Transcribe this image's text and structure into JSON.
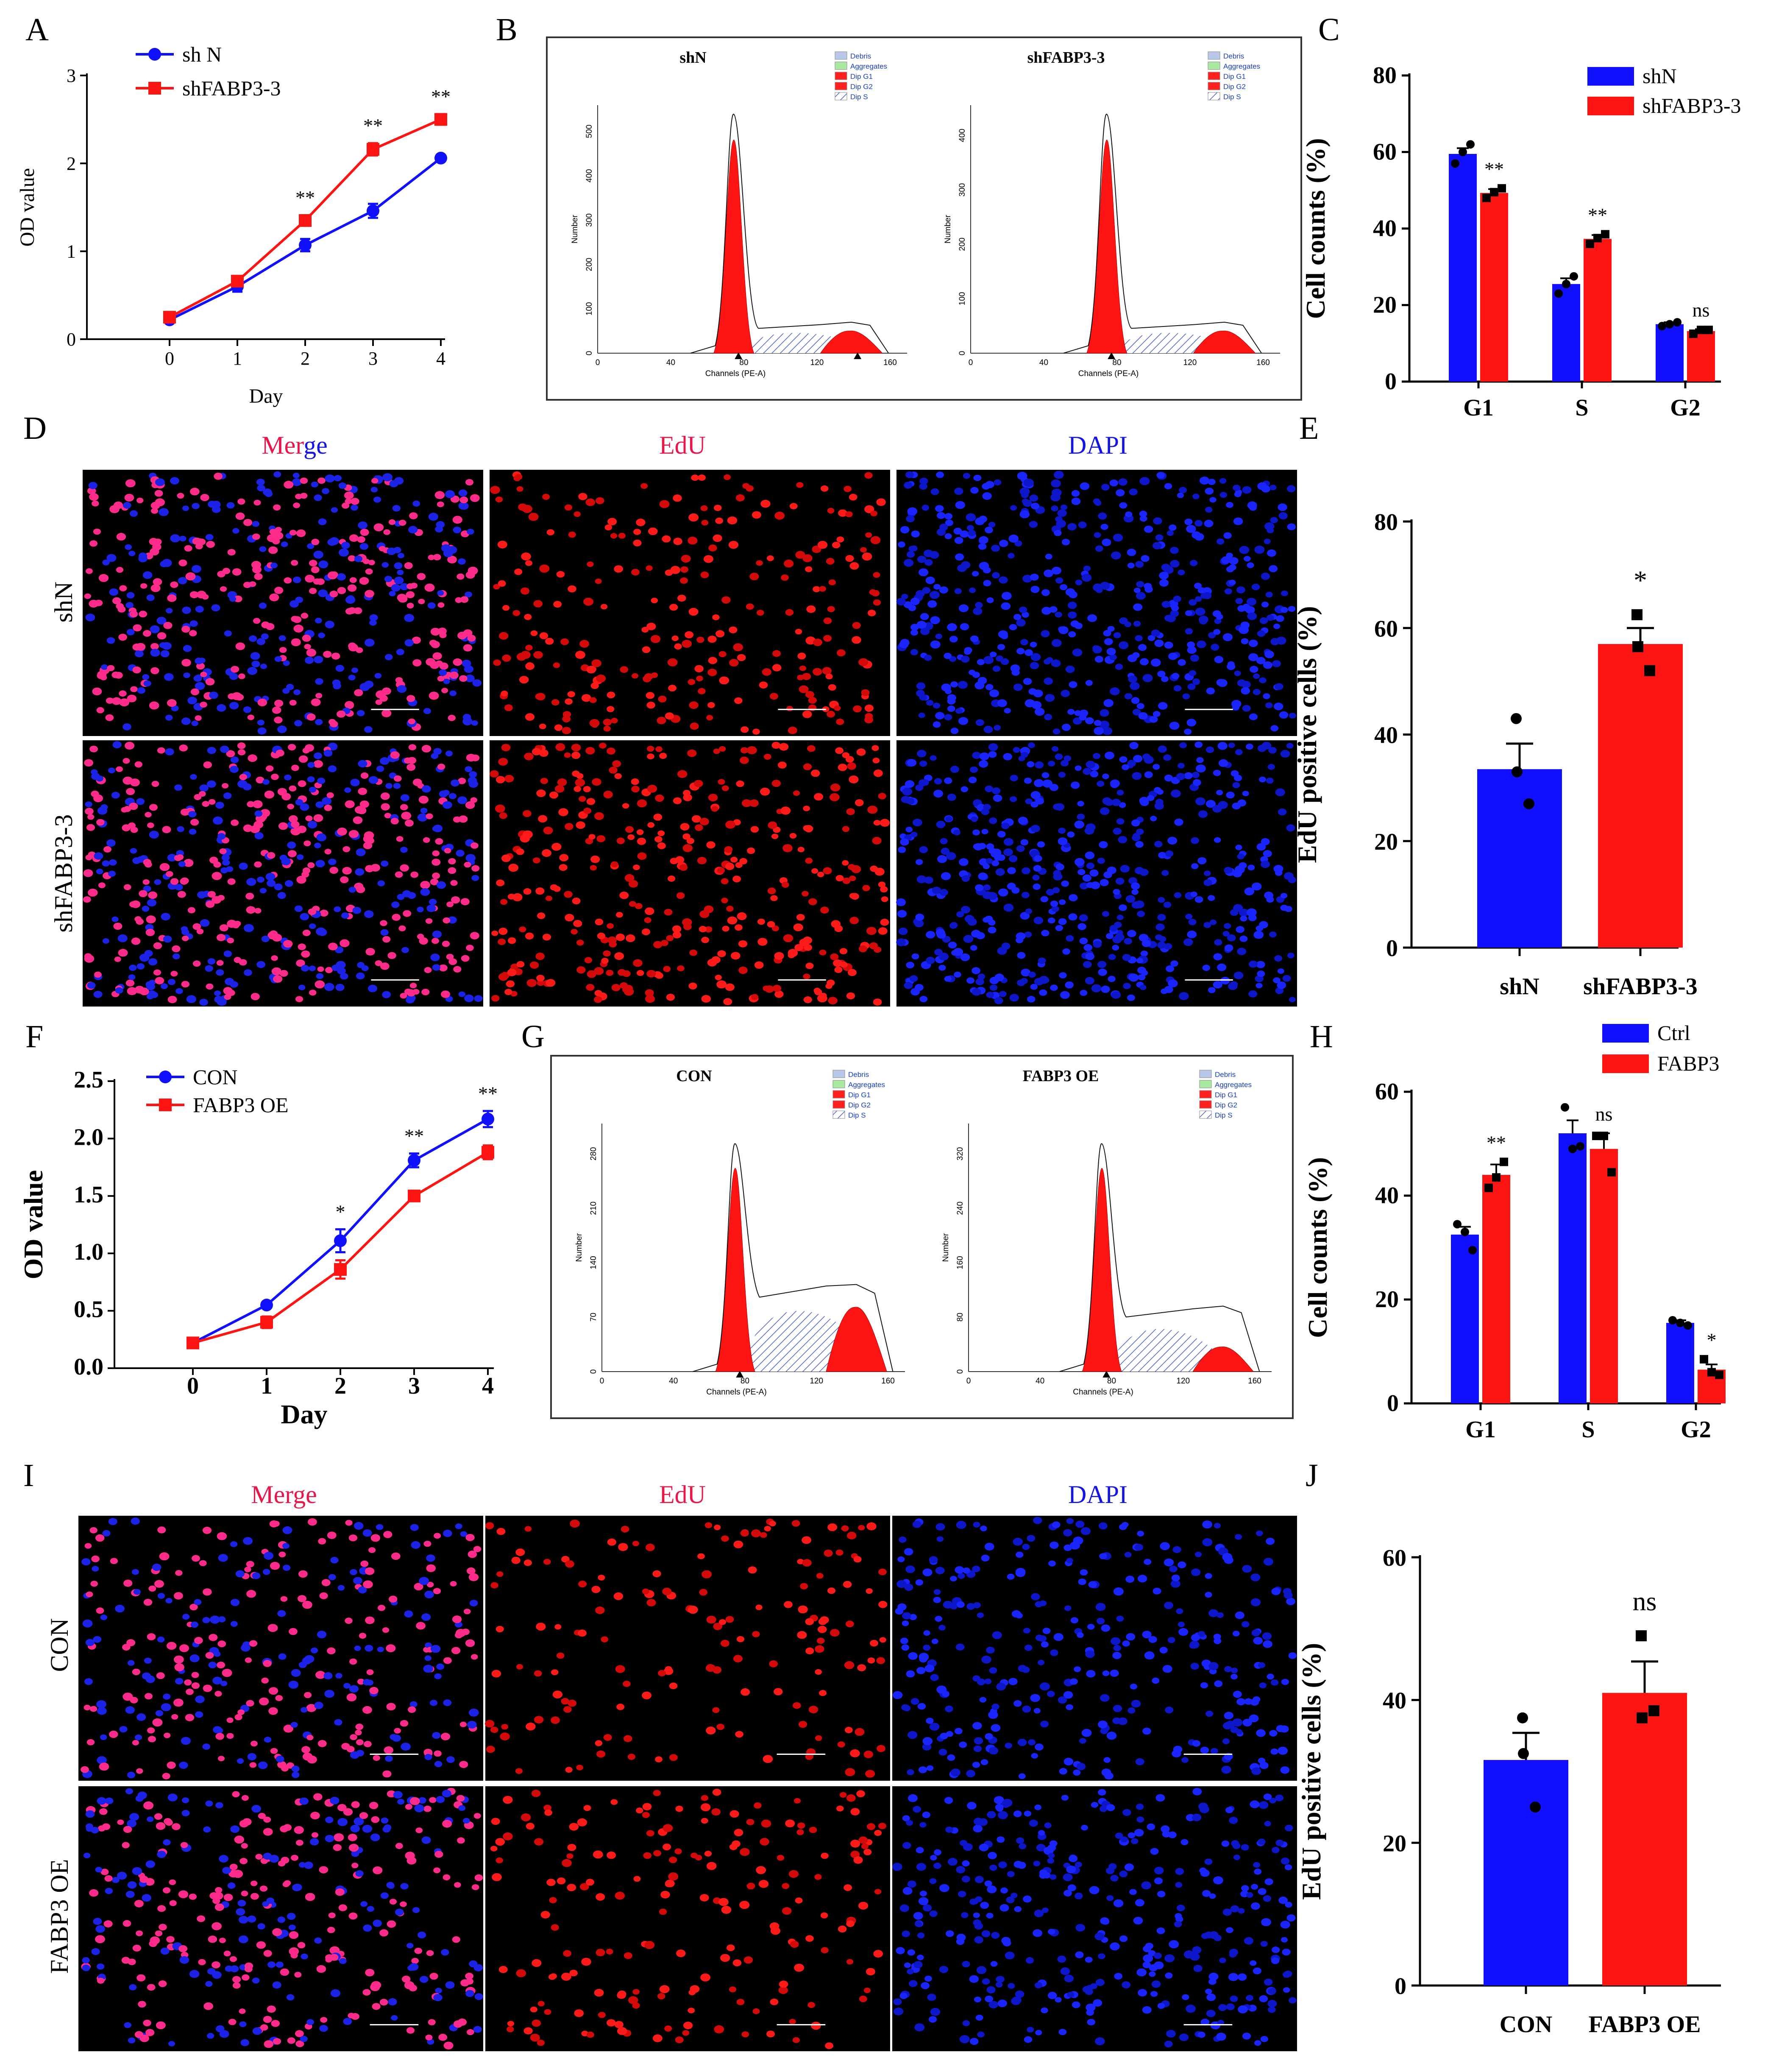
{
  "colors": {
    "blue": "#1010ff",
    "red": "#ff1414",
    "black": "#000000",
    "merge_label": "#e8174a",
    "dapi_label": "#1515e0",
    "hatch": "#4a5fd0"
  },
  "labels": {
    "A": "A",
    "B": "B",
    "C": "C",
    "D": "D",
    "E": "E",
    "F": "F",
    "G": "G",
    "H": "H",
    "I": "I",
    "J": "J"
  },
  "images_D": {
    "columns": {
      "merge_part1": "Mer",
      "merge_part2": "ge",
      "edu": "EdU",
      "dapi": "DAPI"
    },
    "rows": [
      "shN",
      "shFABP3-3"
    ]
  },
  "images_I": {
    "columns": {
      "merge": "Merge",
      "edu": "EdU",
      "dapi": "DAPI"
    },
    "rows": [
      "CON",
      "FABP3 OE"
    ]
  },
  "flow_B": {
    "titles": [
      "shN",
      "shFABP3-3"
    ],
    "legend": [
      "Debris",
      "Aggregates",
      "Dip G1",
      "Dip G2",
      "Dip S"
    ],
    "ylabel": "Number",
    "xlabel": "Channels (PE-A)",
    "xticks": [
      "0",
      "40",
      "80",
      "120",
      "160"
    ],
    "yticks_left": [
      "0",
      "100",
      "200",
      "300",
      "400",
      "500"
    ],
    "yticks_right": [
      "0",
      "100",
      "200",
      "300",
      "400"
    ]
  },
  "flow_G": {
    "titles": [
      "CON",
      "FABP3 OE"
    ],
    "legend": [
      "Debris",
      "Aggregates",
      "Dip G1",
      "Dip G2",
      "Dip S"
    ],
    "ylabel": "Number",
    "xlabel": "Channels (PE-A)",
    "xticks": [
      "0",
      "40",
      "80",
      "120",
      "160"
    ],
    "yticks_left": [
      "0",
      "70",
      "140",
      "210",
      "280"
    ],
    "yticks_right": [
      "0",
      "80",
      "160",
      "240",
      "320"
    ]
  },
  "chart_data": [
    {
      "id": "A",
      "type": "line",
      "xlabel": "Day",
      "ylabel": "OD value",
      "x": [
        0,
        1,
        2,
        3,
        4
      ],
      "ylim": [
        0,
        3
      ],
      "yticks": [
        0,
        1,
        2,
        3
      ],
      "series": [
        {
          "name": "sh N",
          "color": "#1010ff",
          "marker": "circle",
          "values": [
            0.22,
            0.6,
            1.07,
            1.46,
            2.06
          ],
          "err": [
            0.03,
            0.06,
            0.07,
            0.08,
            0.03
          ]
        },
        {
          "name": "shFABP3-3",
          "color": "#ff1414",
          "marker": "square",
          "values": [
            0.25,
            0.66,
            1.35,
            2.16,
            2.5
          ],
          "err": [
            0.02,
            0.04,
            0.06,
            0.07,
            0.06
          ]
        }
      ],
      "annotations": [
        "",
        "",
        "**",
        "**",
        "**"
      ]
    },
    {
      "id": "C",
      "type": "bar",
      "ylabel": "Cell counts (%)",
      "categories": [
        "G1",
        "S",
        "G2"
      ],
      "ylim": [
        0,
        80
      ],
      "yticks": [
        0,
        20,
        40,
        60,
        80
      ],
      "series": [
        {
          "name": "shN",
          "color": "#1010ff",
          "values": [
            59.5,
            25.5,
            15.0
          ],
          "err": [
            1.5,
            1.5,
            0.5
          ],
          "points": [
            [
              57,
              60,
              62
            ],
            [
              23,
              25.5,
              27.5
            ],
            [
              14.5,
              15,
              15.5
            ]
          ]
        },
        {
          "name": "shFABP3-3",
          "color": "#ff1414",
          "values": [
            49.3,
            37.3,
            13.2
          ],
          "err": [
            1.0,
            1.0,
            0.5
          ],
          "points": [
            [
              48,
              49.5,
              50.5
            ],
            [
              36,
              37.5,
              38.5
            ],
            [
              12.5,
              13.5,
              13.5
            ]
          ]
        }
      ],
      "annotations": [
        "**",
        "**",
        "ns"
      ]
    },
    {
      "id": "E",
      "type": "bar",
      "ylabel": "EdU positive cells (%)",
      "categories": [
        "shN",
        "shFABP3-3"
      ],
      "ylim": [
        0,
        80
      ],
      "yticks": [
        0,
        20,
        40,
        60,
        80
      ],
      "colors": [
        "#1010ff",
        "#ff1414"
      ],
      "values": [
        33.5,
        57.0
      ],
      "err": [
        4.8,
        3.0
      ],
      "points": [
        [
          43,
          33,
          27
        ],
        [
          62.5,
          56.5,
          52
        ]
      ],
      "annotations": [
        "",
        "*"
      ]
    },
    {
      "id": "F",
      "type": "line",
      "xlabel": "Day",
      "ylabel": "OD value",
      "x": [
        0,
        1,
        2,
        3,
        4
      ],
      "ylim": [
        0,
        2.5
      ],
      "yticks": [
        0.0,
        0.5,
        1.0,
        1.5,
        2.0,
        2.5
      ],
      "series": [
        {
          "name": "CON",
          "color": "#1010ff",
          "marker": "circle",
          "values": [
            0.22,
            0.55,
            1.11,
            1.81,
            2.17
          ],
          "err": [
            0.02,
            0.02,
            0.1,
            0.06,
            0.07
          ]
        },
        {
          "name": "FABP3 OE",
          "color": "#ff1414",
          "marker": "square",
          "values": [
            0.22,
            0.4,
            0.86,
            1.5,
            1.88
          ],
          "err": [
            0.02,
            0.05,
            0.08,
            0.02,
            0.06
          ]
        }
      ],
      "annotations": [
        "",
        "",
        "*",
        "**",
        "**"
      ]
    },
    {
      "id": "H",
      "type": "bar",
      "ylabel": "Cell counts (%)",
      "categories": [
        "G1",
        "S",
        "G2"
      ],
      "ylim": [
        0,
        60
      ],
      "yticks": [
        0,
        20,
        40,
        60
      ],
      "series": [
        {
          "name": "Ctrl",
          "color": "#1010ff",
          "values": [
            32.5,
            52.0,
            15.5
          ],
          "err": [
            1.5,
            2.5,
            0.5
          ],
          "points": [
            [
              34.5,
              33,
              29.5
            ],
            [
              57,
              49,
              49.5
            ],
            [
              16,
              15.5,
              15
            ]
          ]
        },
        {
          "name": "FABP3",
          "color": "#ff1414",
          "values": [
            44.0,
            49.0,
            6.5
          ],
          "err": [
            2.0,
            3.0,
            1.0
          ],
          "points": [
            [
              41.5,
              43.5,
              46.5
            ],
            [
              51.5,
              51.5,
              44.5
            ],
            [
              8.5,
              6,
              5.5
            ]
          ]
        }
      ],
      "annotations": [
        "**",
        "ns",
        "*"
      ]
    },
    {
      "id": "J",
      "type": "bar",
      "ylabel": "EdU positive cells (%)",
      "categories": [
        "CON",
        "FABP3 OE"
      ],
      "ylim": [
        0,
        60
      ],
      "yticks": [
        0,
        20,
        40,
        60
      ],
      "colors": [
        "#1010ff",
        "#ff1414"
      ],
      "values": [
        31.6,
        41.0
      ],
      "err": [
        3.8,
        4.4
      ],
      "points": [
        [
          37.5,
          32.5,
          25
        ],
        [
          49,
          37.5,
          38.5
        ]
      ],
      "annotations": [
        "",
        "ns"
      ]
    }
  ]
}
